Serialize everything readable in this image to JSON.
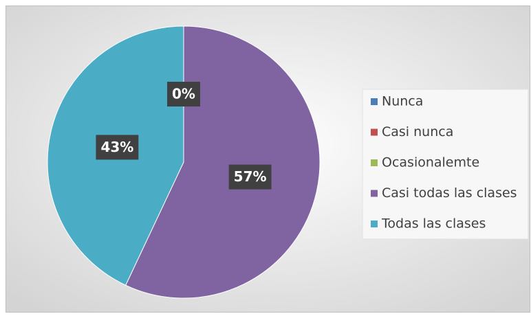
{
  "chart_data": {
    "type": "pie",
    "categories": [
      "Nunca",
      "Casi nunca",
      "Ocasionalemte",
      "Casi todas las clases",
      "Todas las clases"
    ],
    "values": [
      0,
      0,
      0,
      57,
      43
    ],
    "value_labels": [
      "0%",
      null,
      null,
      "57%",
      "43%"
    ],
    "colors": [
      "#4a7ebb",
      "#c0504d",
      "#9bbb59",
      "#8064a2",
      "#4bacc6"
    ],
    "legend": "right"
  }
}
